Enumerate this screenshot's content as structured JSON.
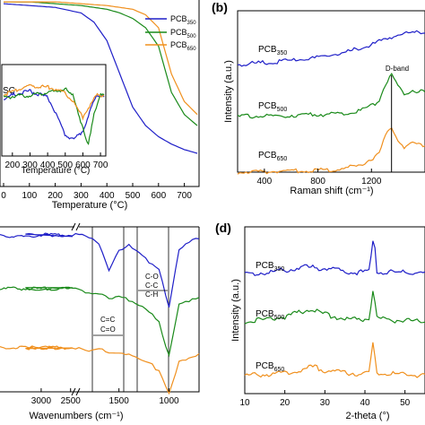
{
  "colors": {
    "pcb350": "#1f1fc8",
    "pcb500": "#1a8a1a",
    "pcb650": "#f0901e"
  },
  "chart_data": [
    {
      "panel": "a",
      "type": "line",
      "xlabel": "Temperature (°C)",
      "xlim": [
        0,
        750
      ],
      "xticks": [
        "0",
        "100",
        "200",
        "300",
        "400",
        "500",
        "600",
        "700"
      ],
      "legend_position": "top-right",
      "series": [
        {
          "name": "PCB350",
          "name_main": "PCB",
          "name_sub": "350",
          "color": "#1f1fc8",
          "x": [
            0,
            100,
            200,
            300,
            350,
            400,
            450,
            500,
            550,
            600,
            650,
            700,
            750
          ],
          "y": [
            98,
            97,
            96,
            93,
            88,
            78,
            60,
            42,
            32,
            26,
            22,
            19,
            17
          ]
        },
        {
          "name": "PCB500",
          "name_main": "PCB",
          "name_sub": "500",
          "color": "#1a8a1a",
          "x": [
            0,
            100,
            200,
            300,
            400,
            450,
            500,
            550,
            600,
            620,
            650,
            700,
            750
          ],
          "y": [
            99,
            99,
            98,
            97,
            95,
            93,
            90,
            85,
            75,
            65,
            50,
            38,
            32
          ]
        },
        {
          "name": "PCB650",
          "name_main": "PCB",
          "name_sub": "650",
          "color": "#f0901e",
          "x": [
            0,
            100,
            200,
            300,
            400,
            500,
            550,
            600,
            620,
            650,
            700,
            750
          ],
          "y": [
            99,
            99,
            99,
            98,
            97,
            95,
            92,
            85,
            75,
            60,
            45,
            38
          ]
        }
      ],
      "inset": {
        "label": "SC",
        "xlabel": "Temperature (°C)",
        "xlim": [
          150,
          720
        ],
        "xticks": [
          "200",
          "300",
          "400",
          "500",
          "600",
          "700"
        ],
        "series": [
          {
            "name": "PCB350",
            "color": "#1f1fc8",
            "x": [
              150,
              200,
              300,
              400,
              450,
              500,
              550,
              600,
              640,
              680,
              720
            ],
            "y": [
              0,
              0.2,
              0.4,
              0.1,
              -0.8,
              -1.8,
              -2.0,
              -1.6,
              -0.6,
              0.2,
              0.2
            ]
          },
          {
            "name": "PCB500",
            "color": "#1a8a1a",
            "x": [
              150,
              300,
              450,
              500,
              550,
              600,
              630,
              660,
              700,
              720
            ],
            "y": [
              0.1,
              0.2,
              0.4,
              0.5,
              0.1,
              -1.5,
              -2.4,
              -0.8,
              0.2,
              0.2
            ]
          },
          {
            "name": "PCB650",
            "color": "#f0901e",
            "x": [
              150,
              200,
              300,
              400,
              450,
              500,
              550,
              600,
              640,
              680,
              720
            ],
            "y": [
              0.2,
              0.4,
              0.7,
              0.6,
              0.5,
              0.3,
              -0.2,
              -0.9,
              -0.3,
              0.2,
              0.2
            ]
          }
        ]
      }
    },
    {
      "panel": "b",
      "panel_label": "(b)",
      "type": "line",
      "xlabel": "Raman shift (cm⁻¹)",
      "ylabel": "Intensity (a.u.)",
      "xlim": [
        200,
        1600
      ],
      "xticks": [
        "400",
        "800",
        "1200"
      ],
      "annotation": "D-band",
      "annotation_x": 1350,
      "series": [
        {
          "name": "PCB350",
          "name_main": "PCB",
          "name_sub": "350",
          "color": "#1f1fc8",
          "x": [
            200,
            400,
            600,
            800,
            1000,
            1100,
            1200,
            1300,
            1350,
            1400,
            1500,
            1600
          ],
          "y": [
            0.0,
            0.1,
            0.2,
            0.35,
            0.6,
            0.8,
            1.0,
            1.3,
            1.4,
            1.5,
            1.6,
            1.7
          ]
        },
        {
          "name": "PCB500",
          "name_main": "PCB",
          "name_sub": "500",
          "color": "#1a8a1a",
          "x": [
            200,
            600,
            900,
            1100,
            1250,
            1300,
            1350,
            1400,
            1450,
            1500,
            1600
          ],
          "y": [
            0.0,
            0.05,
            0.1,
            0.2,
            0.6,
            1.3,
            1.7,
            1.2,
            0.9,
            1.1,
            1.0
          ]
        },
        {
          "name": "PCB650",
          "name_main": "PCB",
          "name_sub": "650",
          "color": "#f0901e",
          "x": [
            200,
            600,
            900,
            1100,
            1250,
            1300,
            1350,
            1400,
            1450,
            1500,
            1600
          ],
          "y": [
            0.0,
            0.05,
            0.1,
            0.25,
            0.7,
            1.4,
            1.9,
            1.3,
            1.0,
            1.2,
            1.1
          ]
        }
      ]
    },
    {
      "panel": "c",
      "type": "line",
      "xlabel": "Wavenumbers (cm⁻¹)",
      "xticks": [
        "3000",
        "2500",
        "1500",
        "1000"
      ],
      "axis_break": true,
      "annotations": [
        "C=C",
        "C=O",
        "C-O",
        "C-C",
        "C-H"
      ],
      "series": [
        {
          "name": "PCB350",
          "color": "#1f1fc8",
          "x": [
            3700,
            3300,
            3000,
            2500,
            1900,
            1800,
            1700,
            1600,
            1500,
            1400,
            1300,
            1200,
            1100,
            1050,
            1000,
            900,
            800,
            700
          ],
          "y": [
            0.0,
            0.05,
            0.0,
            0.0,
            0.0,
            0.1,
            0.2,
            0.9,
            0.4,
            0.3,
            0.5,
            0.7,
            0.9,
            1.4,
            1.9,
            0.4,
            0.2,
            0.1
          ]
        },
        {
          "name": "PCB500",
          "color": "#1a8a1a",
          "x": [
            3700,
            3300,
            3000,
            2500,
            1900,
            1800,
            1700,
            1600,
            1500,
            1400,
            1300,
            1200,
            1100,
            1050,
            1000,
            900,
            800,
            700
          ],
          "y": [
            0.0,
            0.0,
            0.0,
            0.0,
            0.0,
            0.1,
            0.1,
            0.3,
            0.2,
            0.3,
            0.4,
            0.6,
            0.9,
            1.4,
            1.8,
            0.4,
            0.3,
            0.2
          ]
        },
        {
          "name": "PCB650",
          "color": "#f0901e",
          "x": [
            3700,
            3300,
            3000,
            2500,
            1900,
            1800,
            1700,
            1600,
            1500,
            1400,
            1300,
            1200,
            1100,
            1050,
            1000,
            900,
            800,
            700
          ],
          "y": [
            0.0,
            0.0,
            0.0,
            0.0,
            0.0,
            0.1,
            0.05,
            0.1,
            0.1,
            0.2,
            0.3,
            0.4,
            0.6,
            0.9,
            1.2,
            0.4,
            0.3,
            0.2
          ]
        }
      ]
    },
    {
      "panel": "d",
      "panel_label": "(d)",
      "type": "line",
      "xlabel": "2-theta (°)",
      "ylabel": "Intensity (a.u.)",
      "xlim": [
        10,
        55
      ],
      "xticks": [
        "10",
        "20",
        "30",
        "40",
        "50"
      ],
      "series": [
        {
          "name": "PCB350",
          "name_main": "PCB",
          "name_sub": "350",
          "color": "#1f1fc8",
          "x": [
            10,
            15,
            20,
            25,
            30,
            35,
            38,
            41,
            42.3,
            43,
            45,
            50,
            55
          ],
          "y": [
            0.05,
            0.1,
            0.2,
            0.35,
            0.3,
            0.15,
            0.1,
            0.15,
            1.9,
            0.15,
            0.1,
            0.1,
            0.05
          ]
        },
        {
          "name": "PCB500",
          "name_main": "PCB",
          "name_sub": "500",
          "color": "#1a8a1a",
          "x": [
            10,
            15,
            20,
            25,
            26.5,
            30,
            35,
            38,
            41,
            42.0,
            43,
            45,
            50,
            55
          ],
          "y": [
            0.05,
            0.15,
            0.3,
            0.6,
            0.7,
            0.4,
            0.2,
            0.15,
            0.2,
            1.6,
            0.2,
            0.15,
            0.1,
            0.05
          ]
        },
        {
          "name": "PCB650",
          "name_main": "PCB",
          "name_sub": "650",
          "color": "#f0901e",
          "x": [
            10,
            15,
            20,
            25,
            26.5,
            30,
            35,
            38,
            41,
            42.0,
            43,
            45,
            50,
            55
          ],
          "y": [
            0.05,
            0.1,
            0.2,
            0.35,
            0.5,
            0.3,
            0.2,
            0.15,
            0.2,
            1.6,
            0.2,
            0.15,
            0.1,
            0.05
          ]
        }
      ]
    }
  ]
}
